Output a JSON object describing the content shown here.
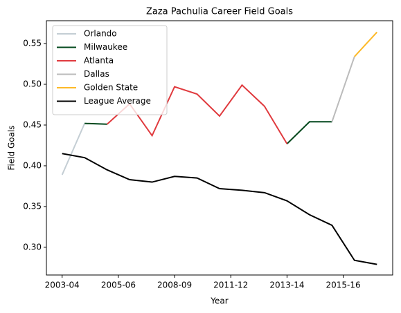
{
  "chart_data": {
    "type": "line",
    "title": "Zaza Pachulia Career Field Goals",
    "xlabel": "Year",
    "ylabel": "Field Goals",
    "x": [
      0,
      1,
      2,
      3,
      4,
      5,
      6,
      7,
      8,
      9,
      10,
      11,
      12,
      13,
      14
    ],
    "xlim": [
      -0.7,
      14.7
    ],
    "xticks": [
      {
        "value": 0,
        "label": "2003-04"
      },
      {
        "value": 2.5,
        "label": "2005-06"
      },
      {
        "value": 5,
        "label": "2008-09"
      },
      {
        "value": 7.5,
        "label": "2011-12"
      },
      {
        "value": 10,
        "label": "2013-14"
      },
      {
        "value": 12.5,
        "label": "2015-16"
      }
    ],
    "ylim": [
      0.266,
      0.578
    ],
    "yticks": [
      {
        "value": 0.3,
        "label": "0.30"
      },
      0.35,
      {
        "value": 0.4,
        "label": "0.40"
      },
      0.45,
      {
        "value": 0.5,
        "label": "0.50"
      },
      0.55
    ],
    "legend": "upper left",
    "series": [
      {
        "name": "Orlando",
        "color": "#c4ced4",
        "values": [
          0.389,
          0.452,
          null,
          null,
          null,
          null,
          null,
          null,
          null,
          null,
          null,
          null,
          null,
          null,
          null
        ]
      },
      {
        "name": "Milwaukee",
        "color": "#00471b",
        "values": [
          null,
          0.452,
          0.451,
          null,
          null,
          null,
          null,
          null,
          null,
          null,
          0.427,
          0.454,
          0.454,
          null,
          null
        ]
      },
      {
        "name": "Atlanta",
        "color": "#e03a3e",
        "values": [
          null,
          null,
          0.451,
          0.476,
          0.437,
          0.497,
          0.488,
          0.461,
          0.499,
          0.473,
          0.427,
          null,
          null,
          null,
          null
        ]
      },
      {
        "name": "Dallas",
        "color": "#bbbbbb",
        "values": [
          null,
          null,
          null,
          null,
          null,
          null,
          null,
          null,
          null,
          null,
          null,
          null,
          0.454,
          0.534,
          null
        ]
      },
      {
        "name": "Golden State",
        "color": "#fdb927",
        "values": [
          null,
          null,
          null,
          null,
          null,
          null,
          null,
          null,
          null,
          null,
          null,
          null,
          null,
          0.534,
          0.564
        ]
      },
      {
        "name": "League Average",
        "color": "#000000",
        "values": [
          0.415,
          0.41,
          0.395,
          0.383,
          0.38,
          0.387,
          0.385,
          0.372,
          0.37,
          0.367,
          0.357,
          0.34,
          0.327,
          0.284,
          0.279
        ]
      }
    ]
  }
}
